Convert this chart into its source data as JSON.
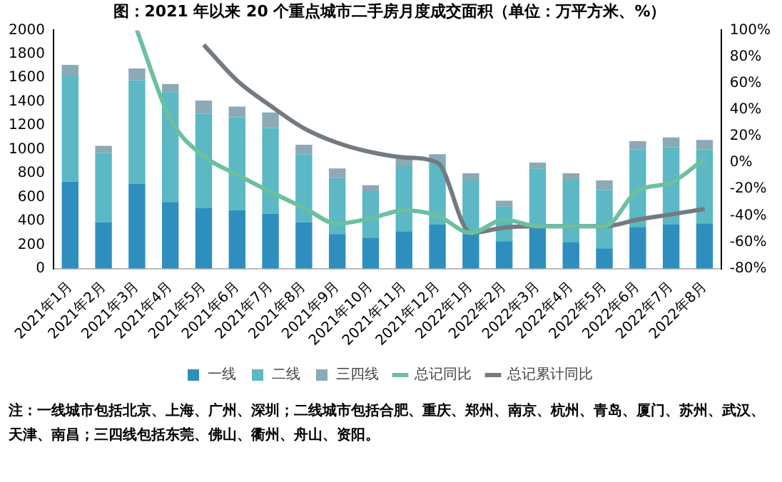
{
  "chart_data": {
    "type": "bar",
    "title": "图：2021 年以来 20 个重点城市二手房月度成交面积（单位：万平方米、%）",
    "categories": [
      "2021年1月",
      "2021年2月",
      "2021年3月",
      "2021年4月",
      "2021年5月",
      "2021年6月",
      "2021年7月",
      "2021年8月",
      "2021年9月",
      "2021年10月",
      "2021年11月",
      "2021年12月",
      "2022年1月",
      "2022年2月",
      "2022年3月",
      "2022年4月",
      "2022年5月",
      "2022年6月",
      "2022年7月",
      "2022年8月"
    ],
    "stacked": true,
    "series": [
      {
        "name": "一线",
        "color": "#2e8fbf",
        "values": [
          730,
          390,
          710,
          560,
          510,
          490,
          460,
          390,
          290,
          260,
          310,
          370,
          290,
          230,
          340,
          220,
          170,
          350,
          370,
          380
        ]
      },
      {
        "name": "二线",
        "color": "#5bb8c4",
        "values": [
          890,
          580,
          870,
          920,
          790,
          780,
          720,
          570,
          470,
          390,
          550,
          520,
          450,
          290,
          500,
          520,
          490,
          650,
          650,
          620
        ]
      },
      {
        "name": "三四线",
        "color": "#8aaab5",
        "values": [
          90,
          60,
          100,
          70,
          110,
          90,
          130,
          80,
          80,
          50,
          60,
          70,
          60,
          50,
          50,
          60,
          80,
          70,
          80,
          80
        ]
      },
      {
        "name": "总记同比",
        "type": "line",
        "axis": "y2",
        "color": "#6cc0a0",
        "marker": "none",
        "values": [
          null,
          null,
          100,
          33,
          5,
          -9,
          -22,
          -34,
          -46,
          -42,
          -36,
          -40,
          -53,
          -43,
          -48,
          -48,
          -48,
          -21,
          -15,
          3
        ]
      },
      {
        "name": "总记累计同比",
        "type": "line",
        "axis": "y2",
        "color": "#737b80",
        "marker": "none",
        "values": [
          null,
          null,
          null,
          null,
          89,
          62,
          43,
          26,
          15,
          8,
          4,
          0,
          -53,
          -49,
          -48,
          -48,
          -48,
          -43,
          -39,
          -35
        ]
      }
    ],
    "ylim": [
      0,
      2000
    ],
    "yticks": [
      0,
      200,
      400,
      600,
      800,
      1000,
      1200,
      1400,
      1600,
      1800,
      2000
    ],
    "y2lim": [
      -80,
      100
    ],
    "y2ticks": [
      {
        "value": -80,
        "label": "-80%"
      },
      {
        "value": -60,
        "label": "-60%"
      },
      {
        "value": -40,
        "label": "-40%"
      },
      {
        "value": -20,
        "label": "-20%"
      },
      {
        "value": 0,
        "label": "0%"
      },
      {
        "value": 20,
        "label": "20%"
      },
      {
        "value": 40,
        "label": "40%"
      },
      {
        "value": 60,
        "label": "60%"
      },
      {
        "value": 80,
        "label": "80%"
      },
      {
        "value": 100,
        "label": "100%"
      }
    ],
    "grid": false,
    "legend": "bottom",
    "annotations": [
      "注：一线城市包括北京、上海、广州、深圳；二线城市包括合肥、重庆、郑州、南京、杭州、青岛、厦门、苏州、武汉、天津、南昌；三四线包括东莞、佛山、衢州、舟山、资阳。"
    ]
  }
}
